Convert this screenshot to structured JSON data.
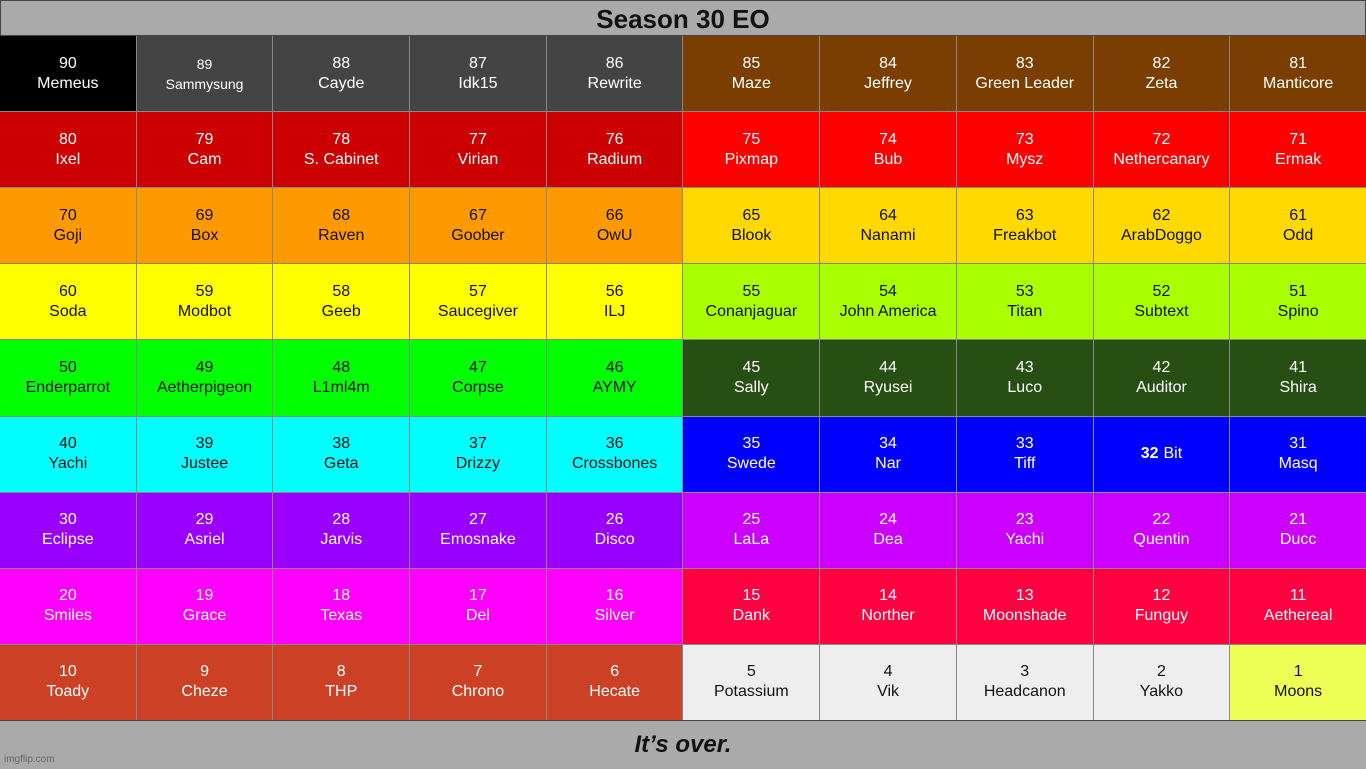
{
  "header": {
    "title": "Season 30 EO"
  },
  "table": {
    "rows": [
      [
        {
          "rank": 90,
          "name": "Memeus"
        },
        {
          "rank": 89,
          "name": "Sammysung"
        },
        {
          "rank": 88,
          "name": "Cayde"
        },
        {
          "rank": 87,
          "name": "Idk15"
        },
        {
          "rank": 86,
          "name": "Rewrite"
        },
        {
          "rank": 85,
          "name": "Maze"
        },
        {
          "rank": 84,
          "name": "Jeffrey"
        },
        {
          "rank": 83,
          "name": "Green Leader"
        },
        {
          "rank": 82,
          "name": "Zeta"
        },
        {
          "rank": 81,
          "name": "Manticore"
        }
      ],
      [
        {
          "rank": 80,
          "name": "Ixel"
        },
        {
          "rank": 79,
          "name": "Cam"
        },
        {
          "rank": 78,
          "name": "S. Cabinet"
        },
        {
          "rank": 77,
          "name": "Virian"
        },
        {
          "rank": 76,
          "name": "Radium"
        },
        {
          "rank": 75,
          "name": "Pixmap"
        },
        {
          "rank": 74,
          "name": "Bub"
        },
        {
          "rank": 73,
          "name": "Mysz"
        },
        {
          "rank": 72,
          "name": "Nethercanary"
        },
        {
          "rank": 71,
          "name": "Ermak"
        }
      ],
      [
        {
          "rank": 70,
          "name": "Goji"
        },
        {
          "rank": 69,
          "name": "Box"
        },
        {
          "rank": 68,
          "name": "Raven"
        },
        {
          "rank": 67,
          "name": "Goober"
        },
        {
          "rank": 66,
          "name": "OwU"
        },
        {
          "rank": 65,
          "name": "Blook"
        },
        {
          "rank": 64,
          "name": "Nanami"
        },
        {
          "rank": 63,
          "name": "Freakbot"
        },
        {
          "rank": 62,
          "name": "ArabDoggo"
        },
        {
          "rank": 61,
          "name": "Odd"
        }
      ],
      [
        {
          "rank": 60,
          "name": "Soda"
        },
        {
          "rank": 59,
          "name": "Modbot"
        },
        {
          "rank": 58,
          "name": "Geeb"
        },
        {
          "rank": 57,
          "name": "Saucegiver"
        },
        {
          "rank": 56,
          "name": "ILJ"
        },
        {
          "rank": 55,
          "name": "Conanjaguar"
        },
        {
          "rank": 54,
          "name": "John America"
        },
        {
          "rank": 53,
          "name": "Titan"
        },
        {
          "rank": 52,
          "name": "Subtext"
        },
        {
          "rank": 51,
          "name": "Spino"
        }
      ],
      [
        {
          "rank": 50,
          "name": "Enderparrot"
        },
        {
          "rank": 49,
          "name": "Aetherpigeon"
        },
        {
          "rank": 48,
          "name": "L1ml4m"
        },
        {
          "rank": 47,
          "name": "Corpse"
        },
        {
          "rank": 46,
          "name": "AYMY"
        },
        {
          "rank": 45,
          "name": "Sally"
        },
        {
          "rank": 44,
          "name": "Ryusei"
        },
        {
          "rank": 43,
          "name": "Luco"
        },
        {
          "rank": 42,
          "name": "Auditor"
        },
        {
          "rank": 41,
          "name": "Shira"
        }
      ],
      [
        {
          "rank": 40,
          "name": "Yachi"
        },
        {
          "rank": 39,
          "name": "Justee"
        },
        {
          "rank": 38,
          "name": "Geta"
        },
        {
          "rank": 37,
          "name": "Drizzy"
        },
        {
          "rank": 36,
          "name": "Crossbones"
        },
        {
          "rank": 35,
          "name": "Swede"
        },
        {
          "rank": 34,
          "name": "Nar"
        },
        {
          "rank": 33,
          "name": "Tiff"
        },
        {
          "rank": 32,
          "name": "Bit"
        },
        {
          "rank": 31,
          "name": "Masq"
        }
      ],
      [
        {
          "rank": 30,
          "name": "Eclipse"
        },
        {
          "rank": 29,
          "name": "Asriel"
        },
        {
          "rank": 28,
          "name": "Jarvis"
        },
        {
          "rank": 27,
          "name": "Emosnake"
        },
        {
          "rank": 26,
          "name": "Disco"
        },
        {
          "rank": 25,
          "name": "LaLa"
        },
        {
          "rank": 24,
          "name": "Dea"
        },
        {
          "rank": 23,
          "name": "Yachi"
        },
        {
          "rank": 22,
          "name": "Quentin"
        },
        {
          "rank": 21,
          "name": "Ducc"
        }
      ],
      [
        {
          "rank": 20,
          "name": "Smiles"
        },
        {
          "rank": 19,
          "name": "Grace"
        },
        {
          "rank": 18,
          "name": "Texas"
        },
        {
          "rank": 17,
          "name": "Del"
        },
        {
          "rank": 16,
          "name": "Silver"
        },
        {
          "rank": 15,
          "name": "Dank"
        },
        {
          "rank": 14,
          "name": "Norther"
        },
        {
          "rank": 13,
          "name": "Moonshade"
        },
        {
          "rank": 12,
          "name": "Funguy"
        },
        {
          "rank": 11,
          "name": "Aethereal"
        }
      ],
      [
        {
          "rank": 10,
          "name": "Toady"
        },
        {
          "rank": 9,
          "name": "Cheze"
        },
        {
          "rank": 8,
          "name": "THP"
        },
        {
          "rank": 7,
          "name": "Chrono"
        },
        {
          "rank": 6,
          "name": "Hecate"
        },
        {
          "rank": 5,
          "name": "Potassium"
        },
        {
          "rank": 4,
          "name": "Vik"
        },
        {
          "rank": 3,
          "name": "Headcanon"
        },
        {
          "rank": 2,
          "name": "Yakko"
        },
        {
          "rank": 1,
          "name": "Moons"
        }
      ]
    ]
  },
  "footer": {
    "text": "It’s over."
  },
  "watermark": "imgflip.com"
}
